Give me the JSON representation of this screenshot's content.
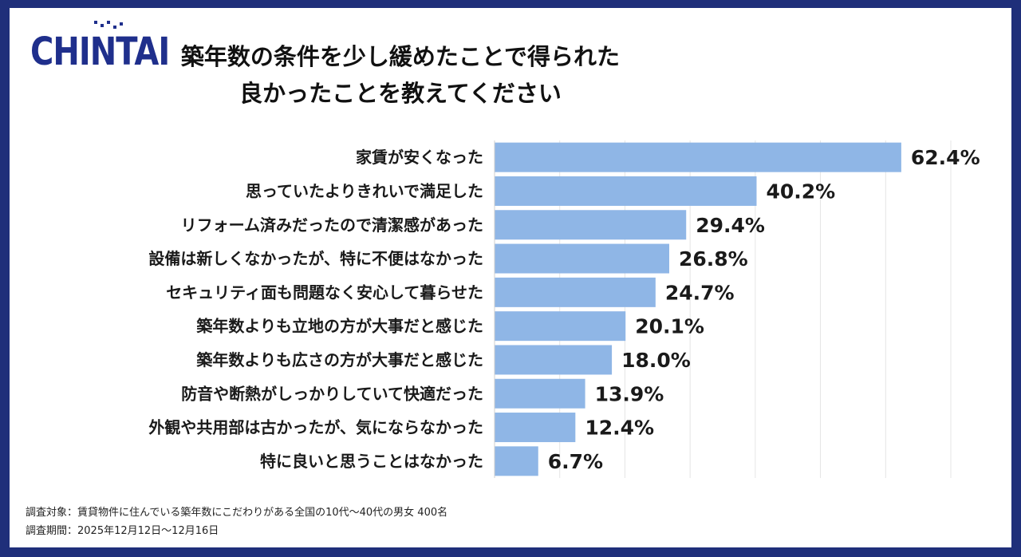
{
  "logo": {
    "text": "CHINTAI"
  },
  "title": {
    "line1": "築年数の条件を少し緩めたことで得られた",
    "line2": "良かったことを教えてください"
  },
  "chart_data": {
    "type": "bar",
    "orientation": "horizontal",
    "categories": [
      "家賃が安くなった",
      "思っていたよりきれいで満足した",
      "リフォーム済みだったので清潔感があった",
      "設備は新しくなかったが、特に不便はなかった",
      "セキュリティ面も問題なく安心して暮らせた",
      "築年数よりも立地の方が大事だと感じた",
      "築年数よりも広さの方が大事だと感じた",
      "防音や断熱がしっかりしていて快適だった",
      "外観や共用部は古かったが、気にならなかった",
      "特に良いと思うことはなかった"
    ],
    "values": [
      62.4,
      40.2,
      29.4,
      26.8,
      24.7,
      20.1,
      18.0,
      13.9,
      12.4,
      6.7
    ],
    "value_labels": [
      "62.4%",
      "40.2%",
      "29.4%",
      "26.8%",
      "24.7%",
      "20.1%",
      "18.0%",
      "13.9%",
      "12.4%",
      "6.7%"
    ],
    "xlim": [
      0,
      70
    ],
    "grid": true,
    "bar_color": "#8fb6e6",
    "grid_color": "#e4e4e4"
  },
  "footnotes": {
    "line1": "調査対象：賃貸物件に住んでいる築年数にこだわりがある全国の10代～40代の男女 400名",
    "line2": "調査期間：2025年12月12日～12月16日"
  },
  "colors": {
    "frame": "#1f2f7a",
    "logo": "#1f2f8c"
  }
}
